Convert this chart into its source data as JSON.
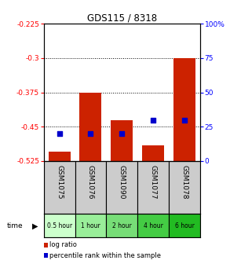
{
  "title": "GDS115 / 8318",
  "samples": [
    "GSM1075",
    "GSM1076",
    "GSM1090",
    "GSM1077",
    "GSM1078"
  ],
  "time_labels": [
    "0.5 hour",
    "1 hour",
    "2 hour",
    "4 hour",
    "6 hour"
  ],
  "log_ratio": [
    -0.505,
    -0.375,
    -0.435,
    -0.49,
    -0.3
  ],
  "percentile_rank": [
    20,
    20,
    20,
    30,
    30
  ],
  "ylim_left": [
    -0.525,
    -0.225
  ],
  "ylim_right": [
    0,
    100
  ],
  "yticks_left": [
    -0.225,
    -0.3,
    -0.375,
    -0.45,
    -0.525
  ],
  "yticks_right": [
    0,
    25,
    50,
    75,
    100
  ],
  "bar_color": "#cc2200",
  "dot_color": "#0000cc",
  "background_color": "#ffffff",
  "label_bg": "#cccccc",
  "time_colors": [
    "#ccffcc",
    "#99ee99",
    "#77dd77",
    "#44cc44",
    "#22bb22"
  ],
  "legend_log": "log ratio",
  "legend_pct": "percentile rank within the sample",
  "bar_width": 0.7,
  "bar_bottom": -0.525
}
